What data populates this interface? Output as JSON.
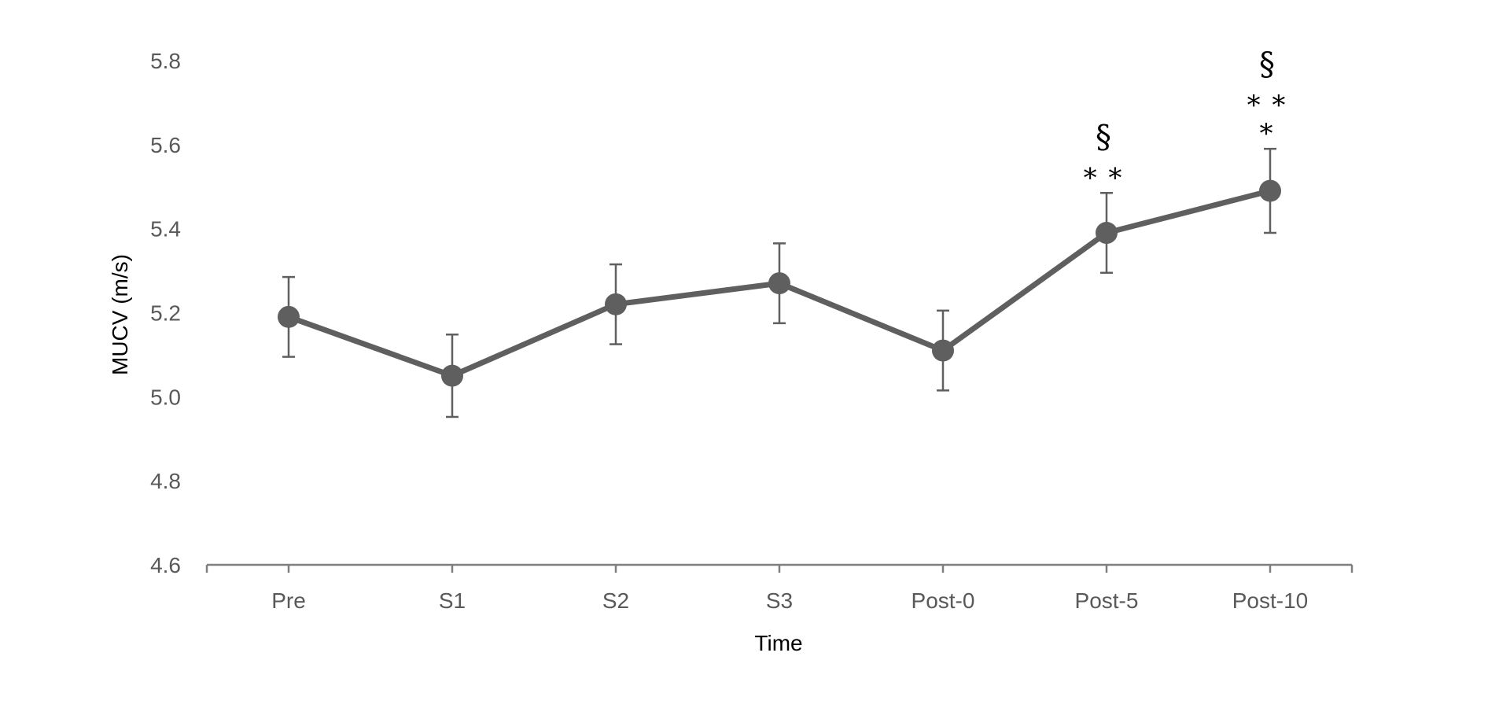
{
  "chart_data": {
    "type": "line",
    "title": "",
    "xlabel": "Time",
    "ylabel": "MUCV (m/s)",
    "categories": [
      "Pre",
      "S1",
      "S2",
      "S3",
      "Post-0",
      "Post-5",
      "Post-10"
    ],
    "series": [
      {
        "name": "MUCV",
        "values": [
          5.19,
          5.05,
          5.22,
          5.27,
          5.11,
          5.39,
          5.49
        ],
        "error": [
          0.095,
          0.098,
          0.095,
          0.095,
          0.095,
          0.095,
          0.1
        ]
      }
    ],
    "ylim": [
      4.6,
      5.8
    ],
    "yticks": [
      4.6,
      4.8,
      5.0,
      5.2,
      5.4,
      5.6,
      5.8
    ],
    "ytick_labels": [
      "4.6",
      "4.8",
      "5.0",
      "5.2",
      "5.4",
      "5.6",
      "5.8"
    ],
    "grid": false,
    "legend": "none",
    "annotations": [
      {
        "category": "Post-5",
        "lines": [
          "§",
          "* *"
        ]
      },
      {
        "category": "Post-10",
        "lines": [
          "§",
          "* *",
          "*"
        ]
      }
    ]
  },
  "colors": {
    "series": "#5f5f5f",
    "axis": "#7f7f7f",
    "text": "#595959",
    "annotation": "#000000"
  }
}
